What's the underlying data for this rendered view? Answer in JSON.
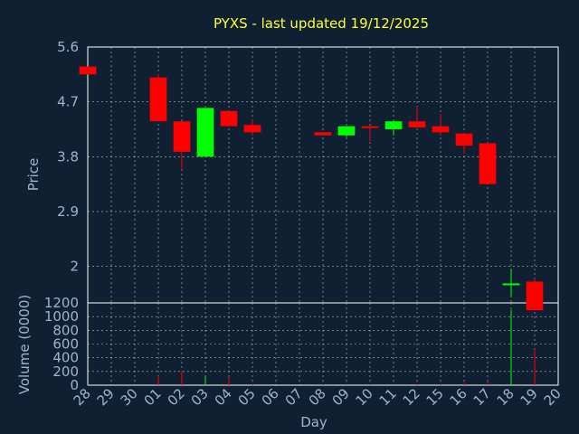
{
  "chart_data": {
    "type": "candlestick",
    "title": "PYXS - last updated 19/12/2025",
    "xlabel": "Day",
    "price_panel": {
      "ylabel": "Price",
      "ylim": [
        1.4,
        5.6
      ],
      "yticks": [
        2,
        2.9,
        3.8,
        4.7,
        5.6
      ],
      "grid": true
    },
    "volume_panel": {
      "ylabel": "Volume (0000)",
      "ylim": [
        0,
        1200
      ],
      "yticks": [
        0,
        200,
        400,
        600,
        800,
        1000,
        1200
      ],
      "grid": true
    },
    "categories": [
      "28",
      "29",
      "30",
      "01",
      "02",
      "03",
      "04",
      "05",
      "06",
      "07",
      "08",
      "09",
      "10",
      "11",
      "12",
      "15",
      "16",
      "17",
      "18",
      "19",
      "20"
    ],
    "candles": [
      {
        "day": "28",
        "open": 5.28,
        "high": 5.28,
        "low": 5.15,
        "close": 5.15,
        "volume": 5
      },
      {
        "day": "01",
        "open": 5.1,
        "high": 5.15,
        "low": 4.38,
        "close": 4.38,
        "volume": 130
      },
      {
        "day": "02",
        "open": 4.38,
        "high": 4.38,
        "low": 3.6,
        "close": 3.88,
        "volume": 210
      },
      {
        "day": "03",
        "open": 3.8,
        "high": 4.6,
        "low": 3.8,
        "close": 4.6,
        "volume": 140
      },
      {
        "day": "04",
        "open": 4.55,
        "high": 4.55,
        "low": 4.3,
        "close": 4.3,
        "volume": 120
      },
      {
        "day": "05",
        "open": 4.32,
        "high": 4.42,
        "low": 4.15,
        "close": 4.2,
        "volume": 15
      },
      {
        "day": "08",
        "open": 4.2,
        "high": 4.2,
        "low": 4.15,
        "close": 4.15,
        "volume": 10
      },
      {
        "day": "09",
        "open": 4.15,
        "high": 4.3,
        "low": 4.12,
        "close": 4.3,
        "volume": 10
      },
      {
        "day": "10",
        "open": 4.3,
        "high": 4.3,
        "low": 4.05,
        "close": 4.28,
        "volume": 8
      },
      {
        "day": "11",
        "open": 4.25,
        "high": 4.4,
        "low": 4.15,
        "close": 4.38,
        "volume": 12
      },
      {
        "day": "12",
        "open": 4.38,
        "high": 4.62,
        "low": 4.28,
        "close": 4.28,
        "volume": 20
      },
      {
        "day": "15",
        "open": 4.3,
        "high": 4.5,
        "low": 4.15,
        "close": 4.2,
        "volume": 18
      },
      {
        "day": "16",
        "open": 4.18,
        "high": 4.18,
        "low": 3.85,
        "close": 3.98,
        "volume": 40
      },
      {
        "day": "17",
        "open": 4.02,
        "high": 4.02,
        "low": 3.35,
        "close": 3.35,
        "volume": 60
      },
      {
        "day": "18",
        "open": 1.7,
        "high": 1.95,
        "low": 1.5,
        "close": 1.72,
        "volume": 1100
      },
      {
        "day": "19",
        "open": 1.75,
        "high": 1.8,
        "low": 1.28,
        "close": 1.28,
        "volume": 530
      }
    ],
    "colors": {
      "up": "#00ff00",
      "down": "#ff0000",
      "grid": "#ffffff",
      "axis_text": "#9fb4cc",
      "title": "#ffff33",
      "background": "#0f2033"
    }
  }
}
